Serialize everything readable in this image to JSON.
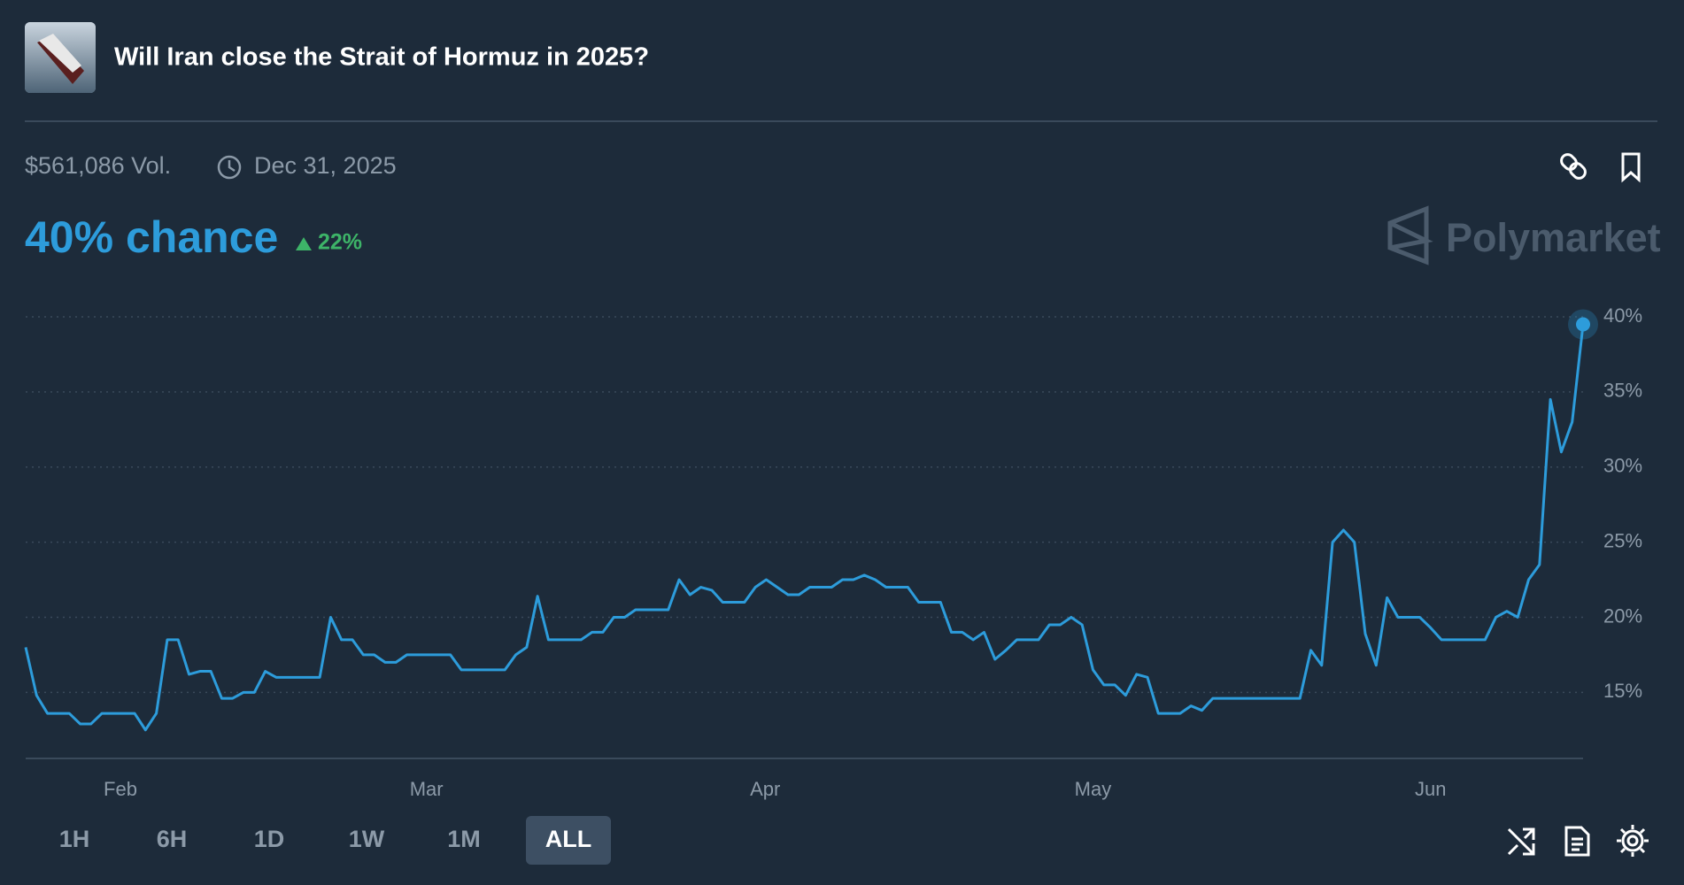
{
  "header": {
    "title": "Will Iran close the Strait of Hormuz in 2025?"
  },
  "stats": {
    "volume": "$561,086 Vol.",
    "end_date": "Dec 31, 2025",
    "chance": "40% chance",
    "change": "22%"
  },
  "brand": "Polymarket",
  "controls": {
    "ranges": [
      "1H",
      "6H",
      "1D",
      "1W",
      "1M",
      "ALL"
    ],
    "active": "ALL"
  },
  "chart_data": {
    "type": "line",
    "color": "#2d9cdb",
    "grid": true,
    "xlim": [
      0,
      143
    ],
    "xticks": [
      {
        "value": 8.7,
        "label": "Feb"
      },
      {
        "value": 36.8,
        "label": "Mar"
      },
      {
        "value": 67.9,
        "label": "Apr"
      },
      {
        "value": 98,
        "label": "May"
      },
      {
        "value": 129,
        "label": "Jun"
      }
    ],
    "ylim": [
      10.6,
      40
    ],
    "yticks": [
      {
        "value": 15,
        "label": "15%"
      },
      {
        "value": 20,
        "label": "20%"
      },
      {
        "value": 25,
        "label": "25%"
      },
      {
        "value": 30,
        "label": "30%"
      },
      {
        "value": 35,
        "label": "35%"
      },
      {
        "value": 40,
        "label": "40%"
      }
    ],
    "values": [
      18,
      14.8,
      13.6,
      13.6,
      13.6,
      12.9,
      12.9,
      13.6,
      13.6,
      13.6,
      13.6,
      12.5,
      13.6,
      18.5,
      18.5,
      16.2,
      16.4,
      16.4,
      14.6,
      14.6,
      15,
      15,
      16.4,
      16,
      16,
      16,
      16,
      16,
      20,
      18.5,
      18.5,
      17.5,
      17.5,
      17,
      17,
      17.5,
      17.5,
      17.5,
      17.5,
      17.5,
      16.5,
      16.5,
      16.5,
      16.5,
      16.5,
      17.5,
      18,
      21.4,
      18.5,
      18.5,
      18.5,
      18.5,
      19,
      19,
      20,
      20,
      20.5,
      20.5,
      20.5,
      20.5,
      22.5,
      21.5,
      22,
      21.8,
      21,
      21,
      21,
      22,
      22.5,
      22,
      21.5,
      21.5,
      22,
      22,
      22,
      22.5,
      22.5,
      22.8,
      22.5,
      22,
      22,
      22,
      21,
      21,
      21,
      19,
      19,
      18.5,
      19,
      17.2,
      17.8,
      18.5,
      18.5,
      18.5,
      19.5,
      19.5,
      20,
      19.5,
      16.5,
      15.5,
      15.5,
      14.8,
      16.2,
      16,
      13.6,
      13.6,
      13.6,
      14.1,
      13.8,
      14.6,
      14.6,
      14.6,
      14.6,
      14.6,
      14.6,
      14.6,
      14.6,
      14.6,
      17.8,
      16.8,
      25,
      25.8,
      25,
      18.9,
      16.8,
      21.3,
      20,
      20,
      20,
      19.3,
      18.5,
      18.5,
      18.5,
      18.5,
      18.5,
      20,
      20.4,
      20,
      22.5,
      23.5,
      34.5,
      31,
      33,
      39.5
    ]
  }
}
